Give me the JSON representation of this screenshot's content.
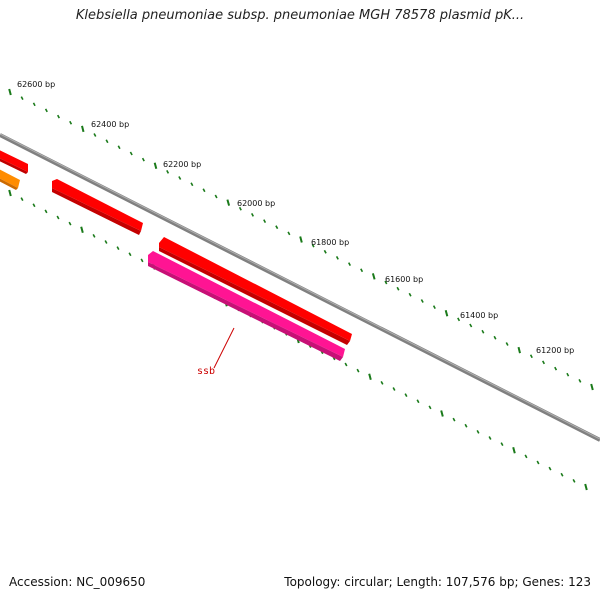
{
  "title": "Klebsiella pneumoniae subsp. pneumoniae MGH 78578 plasmid pK...",
  "footer": {
    "accession": "Accession: NC_009650",
    "summary": "Topology: circular; Length: 107,576 bp; Genes: 123"
  },
  "map": {
    "tick_labels": [
      {
        "label": "62600 bp"
      },
      {
        "label": "62400 bp"
      },
      {
        "label": "62200 bp"
      },
      {
        "label": "62000 bp"
      },
      {
        "label": "61800 bp"
      },
      {
        "label": "61600 bp"
      },
      {
        "label": "61400 bp"
      },
      {
        "label": "61200 bp"
      }
    ],
    "genes": [
      {
        "name": "ssb",
        "color": "#ff1493",
        "label_color": "#cc0000"
      }
    ],
    "colors": {
      "backbone": "#808080",
      "ticks": "#1a7a1a",
      "forward_gene": "#ff0000",
      "partial_gene": "#ff8c00",
      "ssb_gene": "#ff1493"
    }
  }
}
